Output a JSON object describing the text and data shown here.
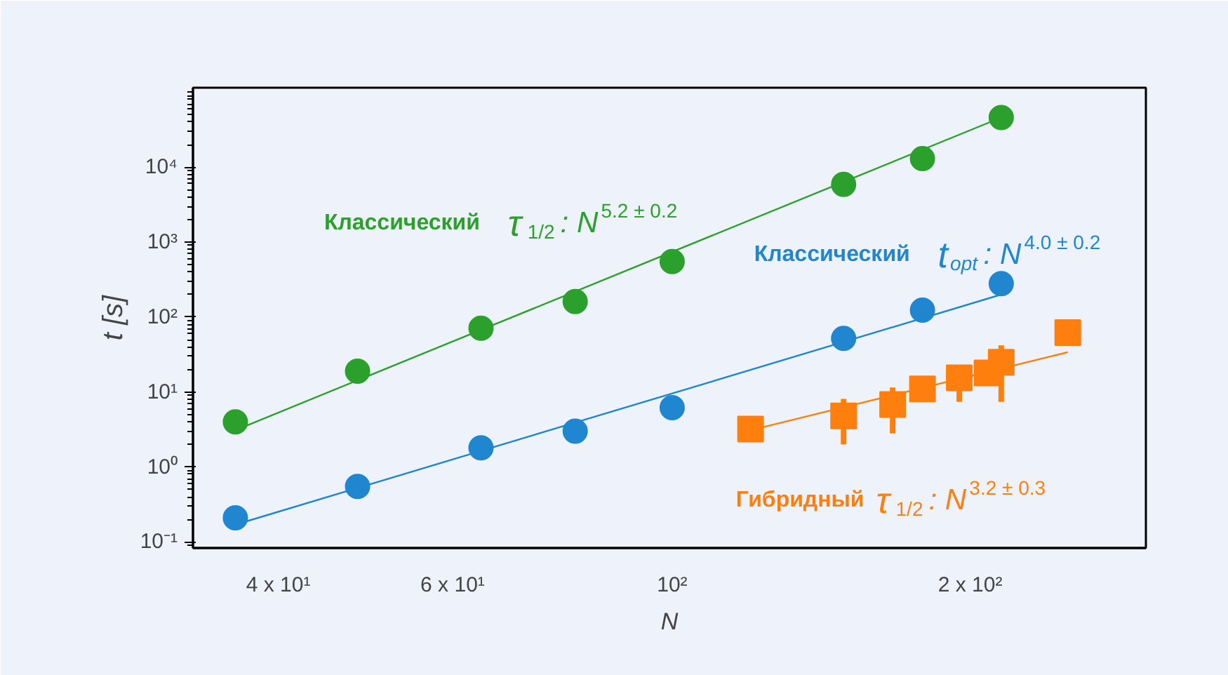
{
  "chart_data": {
    "type": "scatter",
    "xlabel": "N",
    "ylabel": "t [s]",
    "log": "xy",
    "grid": false,
    "xlim": [
      32.8,
      301
    ],
    "ylim": [
      0.083,
      115000
    ],
    "xticks": [
      {
        "value": 40,
        "label": "4 x 10¹"
      },
      {
        "value": 60,
        "label": "6 x 10¹"
      },
      {
        "value": 100,
        "label": "10²"
      },
      {
        "value": 200,
        "label": "2 x 10²"
      }
    ],
    "yticks": [
      {
        "value": 0.1,
        "label": "10⁻¹"
      },
      {
        "value": 1,
        "label": "10⁰"
      },
      {
        "value": 10,
        "label": "10¹"
      },
      {
        "value": 100,
        "label": "10²"
      },
      {
        "value": 1000,
        "label": "10³"
      },
      {
        "value": 10000,
        "label": "10⁴"
      }
    ],
    "series": [
      {
        "name": "Классический τ$_{1/2}$ : N$^{5.2 ± 0.2}$",
        "type": "scatter",
        "marker": "circle",
        "color": "#2ca02c",
        "x": [
          36.2,
          48.1,
          64.1,
          79.8,
          100,
          149,
          179,
          215
        ],
        "values": [
          4.0,
          19,
          71,
          161,
          550,
          5900,
          13000,
          46000
        ]
      },
      {
        "name": "Классический t$_{opt}$ : N$^{4.0 ± 0.2}$",
        "type": "scatter",
        "marker": "circle",
        "color": "#1f86cf",
        "x": [
          36.2,
          48.1,
          64.1,
          79.8,
          100,
          149,
          179,
          215
        ],
        "values": [
          0.21,
          0.55,
          1.8,
          3.0,
          6.2,
          52,
          124,
          280
        ]
      },
      {
        "name": "Гибридный τ$_{1/2}$ : N$^{3.2 ± 0.3}$",
        "type": "scatter",
        "marker": "square",
        "color": "#ff7f0e",
        "x": [
          120,
          149,
          167,
          179,
          195,
          208,
          215,
          251
        ],
        "values": [
          3.2,
          4.8,
          6.8,
          11,
          15.5,
          18,
          25,
          62
        ],
        "errors": [
          null,
          [
            2.0,
            8.1
          ],
          [
            2.8,
            11.5
          ],
          null,
          [
            7.4,
            23
          ],
          null,
          [
            7.4,
            42
          ],
          null
        ]
      },
      {
        "type": "line",
        "marker": "none",
        "color": "#2ca02c",
        "x": [
          36.2,
          215
        ],
        "values": [
          3.1,
          46000
        ]
      },
      {
        "type": "line",
        "marker": "none",
        "color": "#1f86cf",
        "x": [
          36.2,
          215
        ],
        "values": [
          0.17,
          200
        ]
      },
      {
        "type": "line",
        "marker": "none",
        "color": "#ff7f0e",
        "x": [
          120,
          251
        ],
        "values": [
          3.1,
          34
        ]
      }
    ]
  }
}
